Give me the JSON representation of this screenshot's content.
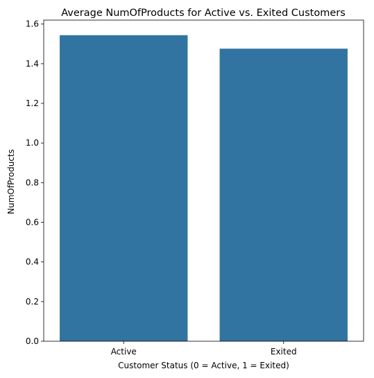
{
  "chart_data": {
    "type": "bar",
    "title": "Average NumOfProducts for Active vs. Exited Customers",
    "xlabel": "Customer Status (0 = Active, 1 = Exited)",
    "ylabel": "NumOfProducts",
    "categories": [
      "Active",
      "Exited"
    ],
    "values": [
      1.544,
      1.476
    ],
    "ylim": [
      0,
      1.62
    ],
    "yticks": [
      "0.0",
      "0.2",
      "0.4",
      "0.6",
      "0.8",
      "1.0",
      "1.2",
      "1.4",
      "1.6"
    ],
    "bar_color": "#3274a1",
    "grid": false
  }
}
